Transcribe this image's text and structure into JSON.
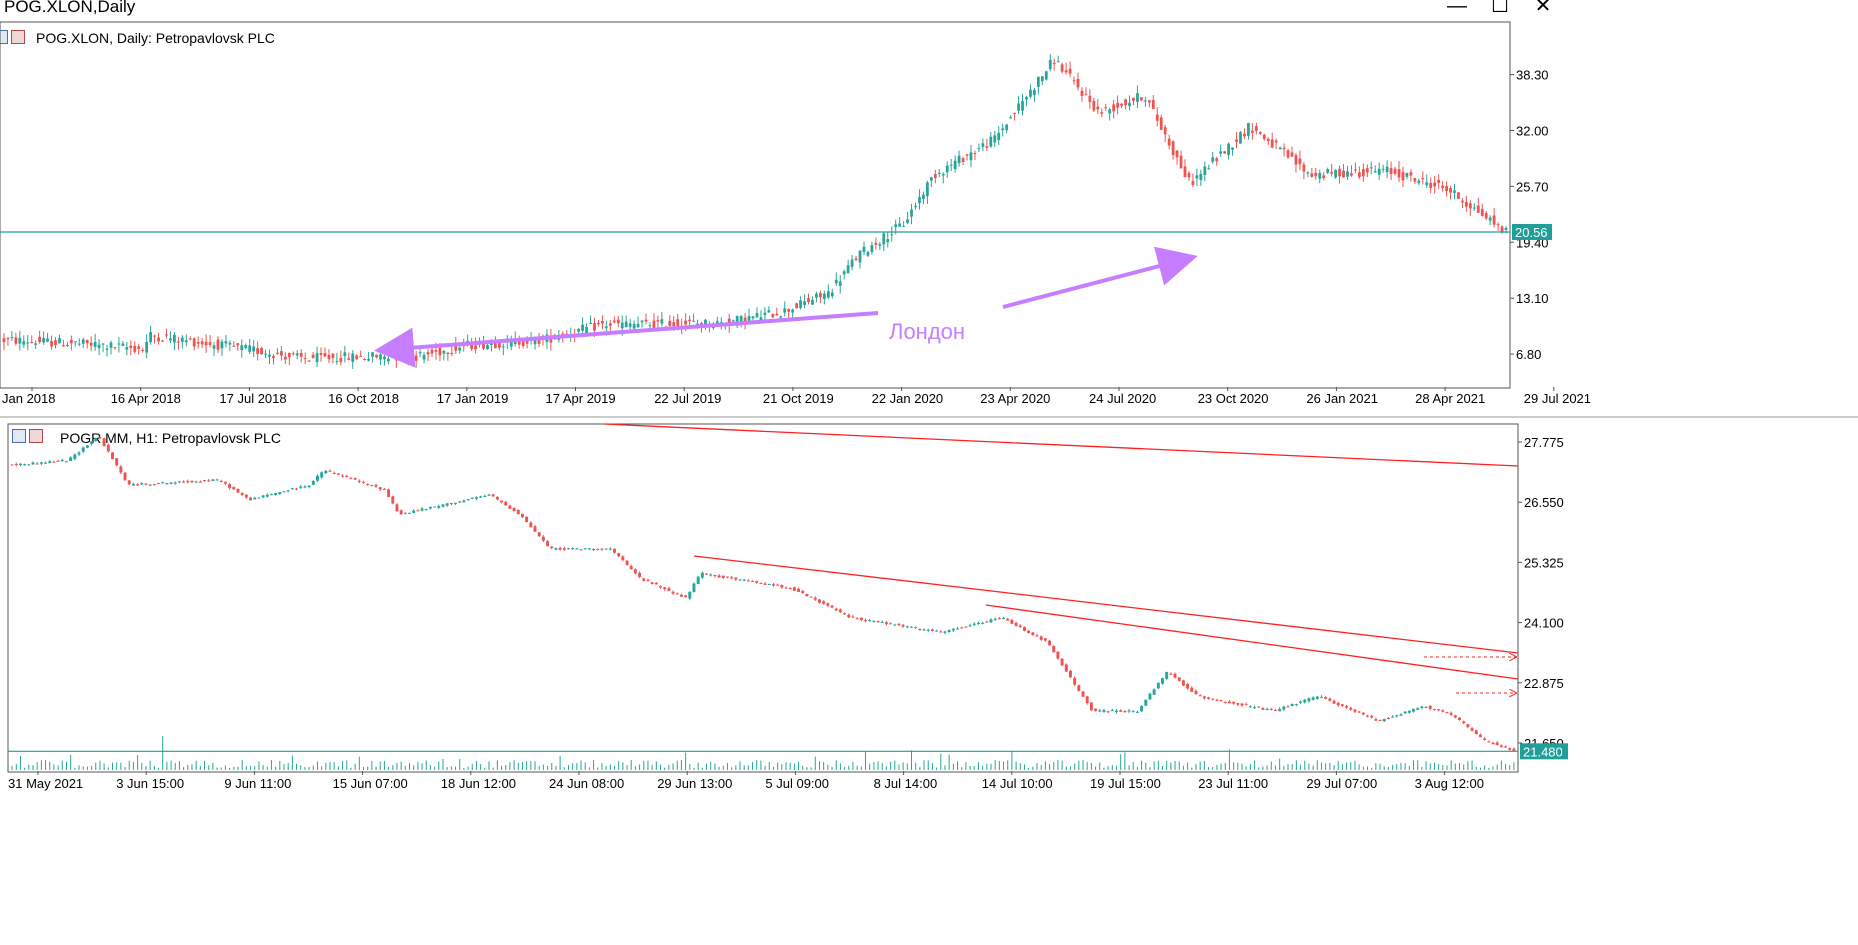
{
  "window": {
    "title": "POG.XLON,Daily",
    "minimize_glyph": "—",
    "maximize_glyph": "☐",
    "close_glyph": "✕"
  },
  "colors": {
    "bull": "#26a69a",
    "bear": "#ef5350",
    "level_line": "#1f9e9a",
    "trend_line": "#ff2020",
    "annotation": "#c77dff",
    "axis_text": "#000000"
  },
  "chart_data": [
    {
      "type": "candlestick",
      "label": "POG.XLON, Daily:  Petropavlovsk PLC",
      "ylim": [
        3.2,
        44
      ],
      "yticks": [
        6.8,
        13.1,
        19.4,
        25.7,
        32.0,
        38.3
      ],
      "ytick_labels": [
        "6.80",
        "13.10",
        "19.40",
        "25.70",
        "32.00",
        "38.30"
      ],
      "xtick_labels": [
        "Jan 2018",
        "16 Apr 2018",
        "17 Jul 2018",
        "16 Oct 2018",
        "17 Jan 2019",
        "17 Apr 2019",
        "22 Jul 2019",
        "21 Oct 2019",
        "22 Jan 2020",
        "23 Apr 2020",
        "24 Jul 2020",
        "23 Oct 2020",
        "26 Jan 2021",
        "28 Apr 2021",
        "29 Jul 2021"
      ],
      "price_path": [
        [
          0,
          8.4
        ],
        [
          0.05,
          8.0
        ],
        [
          0.095,
          7.4
        ],
        [
          0.1,
          8.9
        ],
        [
          0.17,
          7.2
        ],
        [
          0.2,
          6.3
        ],
        [
          0.24,
          6.5
        ],
        [
          0.28,
          6.6
        ],
        [
          0.31,
          7.8
        ],
        [
          0.36,
          8.4
        ],
        [
          0.4,
          10.1
        ],
        [
          0.48,
          10.3
        ],
        [
          0.52,
          11.6
        ],
        [
          0.55,
          13.7
        ],
        [
          0.57,
          18.0
        ],
        [
          0.6,
          21.5
        ],
        [
          0.62,
          27.0
        ],
        [
          0.66,
          31.0
        ],
        [
          0.7,
          40.0
        ],
        [
          0.73,
          34.0
        ],
        [
          0.76,
          36.0
        ],
        [
          0.79,
          26.0
        ],
        [
          0.83,
          32.5
        ],
        [
          0.87,
          27.0
        ],
        [
          0.92,
          27.5
        ],
        [
          0.96,
          25.5
        ],
        [
          1.0,
          20.6
        ]
      ],
      "current_price": 20.56,
      "current_price_label": "20.56",
      "level": 20.56,
      "annotation": "Лондон"
    },
    {
      "type": "candlestick",
      "label": "POGR.MM, H1:  Petropavlovsk PLC",
      "ylim": [
        21.1,
        28.1
      ],
      "yticks": [
        21.65,
        22.875,
        24.1,
        25.325,
        26.55,
        27.775
      ],
      "ytick_labels": [
        "21.650",
        "22.875",
        "24.100",
        "25.325",
        "26.550",
        "27.775"
      ],
      "xtick_labels": [
        "31 May 2021",
        "3 Jun 15:00",
        "9 Jun 11:00",
        "15 Jun 07:00",
        "18 Jun 12:00",
        "24 Jun 08:00",
        "29 Jun 13:00",
        "5 Jul 09:00",
        "8 Jul 14:00",
        "14 Jul 10:00",
        "19 Jul 15:00",
        "23 Jul 11:00",
        "29 Jul 07:00",
        "3 Aug 12:00"
      ],
      "price_path": [
        [
          0,
          27.3
        ],
        [
          0.04,
          27.4
        ],
        [
          0.06,
          27.9
        ],
        [
          0.08,
          26.9
        ],
        [
          0.14,
          27.0
        ],
        [
          0.16,
          26.6
        ],
        [
          0.2,
          26.9
        ],
        [
          0.21,
          27.2
        ],
        [
          0.25,
          26.8
        ],
        [
          0.26,
          26.3
        ],
        [
          0.32,
          26.7
        ],
        [
          0.34,
          26.3
        ],
        [
          0.36,
          25.6
        ],
        [
          0.4,
          25.6
        ],
        [
          0.42,
          25.0
        ],
        [
          0.45,
          24.6
        ],
        [
          0.46,
          25.1
        ],
        [
          0.52,
          24.8
        ],
        [
          0.56,
          24.2
        ],
        [
          0.62,
          23.9
        ],
        [
          0.66,
          24.2
        ],
        [
          0.69,
          23.7
        ],
        [
          0.72,
          22.3
        ],
        [
          0.75,
          22.3
        ],
        [
          0.77,
          23.1
        ],
        [
          0.79,
          22.6
        ],
        [
          0.84,
          22.3
        ],
        [
          0.87,
          22.6
        ],
        [
          0.91,
          22.1
        ],
        [
          0.94,
          22.4
        ],
        [
          0.96,
          22.2
        ],
        [
          0.98,
          21.7
        ],
        [
          1.0,
          21.5
        ]
      ],
      "current_price": 21.48,
      "current_price_label": "21.480",
      "level": 21.48
    }
  ]
}
